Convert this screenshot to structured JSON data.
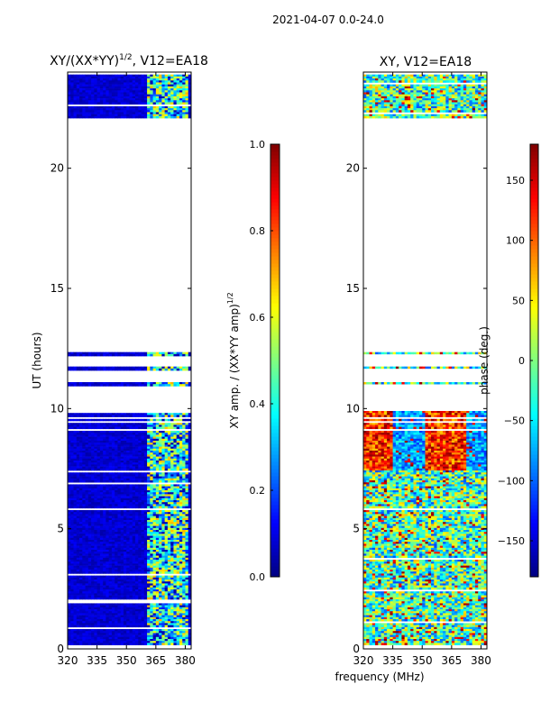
{
  "figure": {
    "suptitle": "2021-04-07 0.0-24.0",
    "shared_xlabel": "frequency (MHz)"
  },
  "colormap": {
    "name": "jet",
    "stops": [
      "#00007f",
      "#0000ff",
      "#0080ff",
      "#00d4ff",
      "#7dff7a",
      "#ffe600",
      "#ff8c00",
      "#ff1a00",
      "#7f0000"
    ]
  },
  "chart_data": [
    {
      "type": "heatmap",
      "title": "XY/(XX*YY)^{1/2}, V12=EA18",
      "title_main": "XY/(XX*YY)",
      "title_sup": "1/2",
      "title_tail": ", V12=EA18",
      "xlabel": "",
      "ylabel": "UT (hours)",
      "xlim": [
        320,
        383
      ],
      "ylim": [
        0,
        24
      ],
      "xticks": [
        320,
        335,
        350,
        365,
        380
      ],
      "yticks": [
        0,
        5,
        10,
        15,
        20
      ],
      "value_range": [
        0.0,
        1.0
      ],
      "variable": "amplitude",
      "colorbar": {
        "label": "XY amp. / (XX*YY amp)^{1/2}",
        "label_main": "XY amp. / (XX*YY amp)",
        "label_sup": "1/2",
        "range": [
          0.0,
          1.0
        ],
        "ticks": [
          0.0,
          0.2,
          0.4,
          0.6,
          0.8,
          1.0
        ],
        "tick_labels": [
          "0.0",
          "0.2",
          "0.4",
          "0.6",
          "0.8",
          "1.0"
        ]
      },
      "data_time_ranges_hours": [
        [
          0.2,
          9.9
        ],
        [
          10.95,
          11.1
        ],
        [
          11.65,
          11.75
        ],
        [
          12.25,
          12.35
        ],
        [
          22.1,
          23.9
        ]
      ],
      "high_amplitude_band_MHz": [
        361,
        381
      ]
    },
    {
      "type": "heatmap",
      "title": "XY, V12=EA18",
      "xlabel": "frequency (MHz)",
      "ylabel": "",
      "xlim": [
        320,
        383
      ],
      "ylim": [
        0,
        24
      ],
      "xticks": [
        320,
        335,
        350,
        365,
        380
      ],
      "yticks": [
        0,
        5,
        10,
        15,
        20
      ],
      "value_range": [
        -180,
        180
      ],
      "variable": "phase",
      "colorbar": {
        "label": "phase (deg.)",
        "range": [
          -180,
          180
        ],
        "ticks": [
          -150,
          -100,
          -50,
          0,
          50,
          100,
          150
        ],
        "tick_labels": [
          "−150",
          "−100",
          "−50",
          "0",
          "50",
          "100",
          "150"
        ]
      },
      "data_time_ranges_hours": [
        [
          0.2,
          9.9
        ],
        [
          10.95,
          11.1
        ],
        [
          11.65,
          11.75
        ],
        [
          12.25,
          12.35
        ],
        [
          22.1,
          23.9
        ]
      ]
    }
  ]
}
